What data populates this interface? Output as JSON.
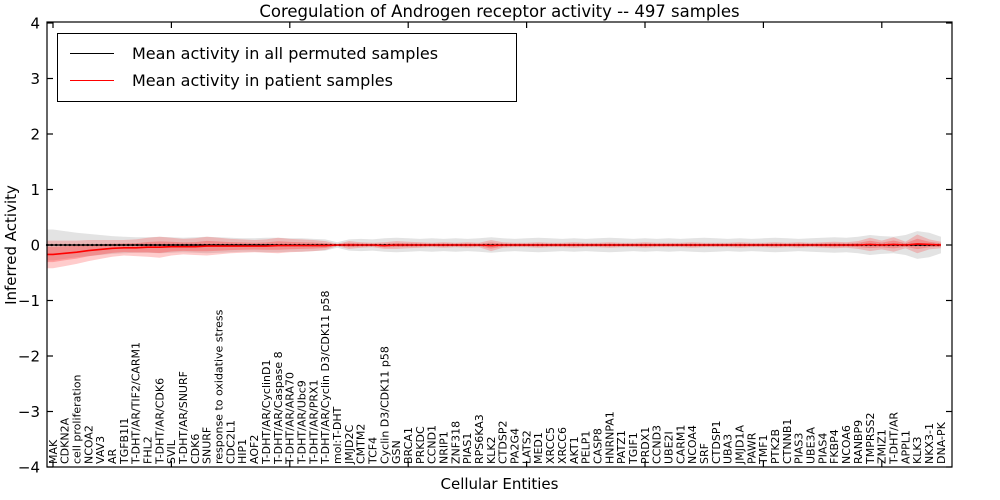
{
  "figure": {
    "title": "Coregulation of Androgen receptor activity -- 497 samples",
    "xlabel": "Cellular Entities",
    "ylabel": "Inferred Activity"
  },
  "chart_data": {
    "type": "line",
    "title": "Coregulation of Androgen receptor activity -- 497 samples",
    "xlabel": "Cellular Entities",
    "ylabel": "Inferred Activity",
    "ylim": [
      -4,
      4
    ],
    "yticks": [
      -4,
      -3,
      -2,
      -1,
      0,
      1,
      2,
      3,
      4
    ],
    "grid": false,
    "legend_position": "upper left",
    "colors": {
      "permuted": "#000000",
      "patient": "#ff0000",
      "permuted_band": "#999999",
      "patient_band": "#ff3333"
    },
    "categories": [
      "MAK",
      "CDKN2A",
      "cell proliferation",
      "NCOA2",
      "VAV3",
      "AR",
      "TGFB1I1",
      "T-DHT/AR/TIF2/CARM1",
      "FHL2",
      "T-DHT/AR/CDK6",
      "SVIL",
      "T-DHT/AR/SNURF",
      "CDK6",
      "SNURF",
      "response to oxidative stress",
      "CDC2L1",
      "HIP1",
      "AOF2",
      "T-DHT/AR/CyclinD1",
      "T-DHT/AR/Caspase 8",
      "T-DHT/AR/ARA70",
      "T-DHT/AR/Ubc9",
      "T-DHT/AR/PRX1",
      "T-DHT/AR/Cyclin D3/CDK11 p58",
      "mol:T-DHT",
      "JMJD2C",
      "CMTM2",
      "TCF4",
      "Cyclin D3/CDK11 p58",
      "GSN",
      "BRCA1",
      "PRKDC",
      "CCND1",
      "NRIP1",
      "ZNF318",
      "PIAS1",
      "RPS6KA3",
      "KLK2",
      "CTDSP2",
      "PA2G4",
      "LATS2",
      "MED1",
      "XRCC5",
      "XRCC6",
      "AKT1",
      "PELP1",
      "CASP8",
      "HNRNPA1",
      "PATZ1",
      "TGIF1",
      "PRDX1",
      "CCND3",
      "UBE2I",
      "CARM1",
      "NCOA4",
      "SRF",
      "CTDSP1",
      "UBA3",
      "JMJD1A",
      "PAWR",
      "TMF1",
      "PTK2B",
      "CTNNB1",
      "PIAS3",
      "UBE3A",
      "PIAS4",
      "FKBP4",
      "NCOA6",
      "RANBP9",
      "TMPRSS2",
      "ZMIZ1",
      "T-DHT/AR",
      "APPL1",
      "KLK3",
      "NKX3-1",
      "DNA-PK"
    ],
    "series": [
      {
        "name": "Mean activity in all permuted samples",
        "color": "#000000",
        "style": "solid-with-dots",
        "values": [
          0,
          0,
          0,
          0,
          0,
          0,
          0,
          0,
          0,
          0,
          0,
          0,
          0,
          0,
          0,
          0,
          0,
          0,
          0,
          0,
          0,
          0,
          0,
          0,
          0,
          0,
          0,
          0,
          0,
          0,
          0,
          0,
          0,
          0,
          0,
          0,
          0,
          0,
          0,
          0,
          0,
          0,
          0,
          0,
          0,
          0,
          0,
          0,
          0,
          0,
          0,
          0,
          0,
          0,
          0,
          0,
          0,
          0,
          0,
          0,
          0,
          0,
          0,
          0,
          0,
          0,
          0,
          0,
          0,
          0,
          0,
          0,
          0,
          0,
          0,
          0
        ]
      },
      {
        "name": "Mean activity in patient samples",
        "color": "#ff0000",
        "style": "solid",
        "values": [
          -0.17,
          -0.15,
          -0.13,
          -0.1,
          -0.08,
          -0.06,
          -0.05,
          -0.05,
          -0.04,
          -0.04,
          -0.03,
          -0.03,
          -0.03,
          -0.02,
          -0.02,
          -0.02,
          -0.02,
          -0.02,
          -0.02,
          -0.01,
          -0.01,
          -0.01,
          -0.01,
          -0.01,
          0,
          0,
          0,
          0,
          -0.01,
          0,
          0,
          0,
          0,
          0,
          0,
          0,
          0,
          -0.01,
          0,
          0,
          0,
          0,
          0,
          0,
          0,
          0,
          0,
          0,
          0,
          0,
          0,
          0,
          0,
          0,
          0,
          0,
          0,
          0,
          0,
          0,
          0,
          0,
          0,
          0,
          0,
          0,
          0,
          0,
          0,
          0.01,
          0,
          0.01,
          0,
          0.02,
          0.01,
          0
        ]
      }
    ],
    "bands": [
      {
        "name": "permuted-confidence-band",
        "center_series": 0,
        "color": "#999999",
        "opacity": 0.28,
        "halfwidths": [
          0.28,
          0.25,
          0.22,
          0.2,
          0.18,
          0.16,
          0.15,
          0.14,
          0.14,
          0.15,
          0.14,
          0.13,
          0.14,
          0.15,
          0.14,
          0.13,
          0.12,
          0.12,
          0.13,
          0.13,
          0.12,
          0.12,
          0.11,
          0.1,
          0.05,
          0.1,
          0.11,
          0.1,
          0.12,
          0.13,
          0.12,
          0.11,
          0.12,
          0.11,
          0.12,
          0.11,
          0.12,
          0.14,
          0.12,
          0.11,
          0.12,
          0.13,
          0.12,
          0.11,
          0.12,
          0.11,
          0.12,
          0.13,
          0.12,
          0.11,
          0.12,
          0.11,
          0.12,
          0.11,
          0.12,
          0.13,
          0.12,
          0.11,
          0.12,
          0.11,
          0.12,
          0.13,
          0.12,
          0.11,
          0.12,
          0.13,
          0.14,
          0.13,
          0.15,
          0.18,
          0.16,
          0.15,
          0.18,
          0.25,
          0.22,
          0.15
        ]
      },
      {
        "name": "patient-confidence-band",
        "center_series": 1,
        "color": "#ff3333",
        "opacity": 0.25,
        "inner_scale": 0.55,
        "inner_opacity": 0.3,
        "halfwidths": [
          0.25,
          0.23,
          0.21,
          0.19,
          0.17,
          0.15,
          0.14,
          0.15,
          0.17,
          0.19,
          0.16,
          0.14,
          0.15,
          0.17,
          0.15,
          0.13,
          0.12,
          0.11,
          0.12,
          0.14,
          0.12,
          0.11,
          0.1,
          0.08,
          0.02,
          0.07,
          0.05,
          0.04,
          0.06,
          0.07,
          0.06,
          0.05,
          0.04,
          0.05,
          0.04,
          0.05,
          0.04,
          0.1,
          0.05,
          0.04,
          0.04,
          0.05,
          0.04,
          0.04,
          0.05,
          0.04,
          0.04,
          0.05,
          0.04,
          0.04,
          0.05,
          0.04,
          0.04,
          0.04,
          0.05,
          0.04,
          0.04,
          0.04,
          0.05,
          0.04,
          0.04,
          0.05,
          0.04,
          0.05,
          0.04,
          0.05,
          0.06,
          0.05,
          0.07,
          0.12,
          0.08,
          0.13,
          0.06,
          0.17,
          0.09,
          0.06
        ]
      }
    ]
  }
}
